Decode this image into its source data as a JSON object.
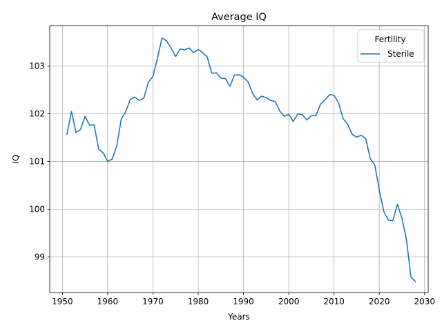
{
  "chart_data": {
    "type": "line",
    "title": "Average IQ",
    "xlabel": "Years",
    "ylabel": "IQ",
    "xlim": [
      1947.2,
      2030.8
    ],
    "ylim": [
      98.25,
      103.85
    ],
    "xticks": [
      1950,
      1960,
      1970,
      1980,
      1990,
      2000,
      2010,
      2020,
      2030
    ],
    "yticks": [
      99,
      100,
      101,
      102,
      103
    ],
    "xtick_labels": [
      "1950",
      "1960",
      "1970",
      "1980",
      "1990",
      "2000",
      "2010",
      "2020",
      "2030"
    ],
    "ytick_labels": [
      "99",
      "100",
      "101",
      "102",
      "103"
    ],
    "grid": true,
    "legend": {
      "title": "Fertility",
      "placement": "upper-right"
    },
    "series": [
      {
        "name": "Sterile",
        "color": "#1f77b4",
        "x": [
          1951,
          1952,
          1953,
          1954,
          1955,
          1956,
          1957,
          1958,
          1959,
          1960,
          1961,
          1962,
          1963,
          1964,
          1965,
          1966,
          1967,
          1968,
          1969,
          1970,
          1971,
          1972,
          1973,
          1974,
          1975,
          1976,
          1977,
          1978,
          1979,
          1980,
          1981,
          1982,
          1983,
          1984,
          1985,
          1986,
          1987,
          1988,
          1989,
          1990,
          1991,
          1992,
          1993,
          1994,
          1995,
          1996,
          1997,
          1998,
          1999,
          2000,
          2001,
          2002,
          2003,
          2004,
          2005,
          2006,
          2007,
          2008,
          2009,
          2010,
          2011,
          2012,
          2013,
          2014,
          2015,
          2016,
          2017,
          2018,
          2019,
          2020,
          2021,
          2022,
          2023,
          2024,
          2025,
          2026,
          2027,
          2028
        ],
        "values": [
          101.57,
          102.05,
          101.61,
          101.67,
          101.95,
          101.76,
          101.77,
          101.26,
          101.18,
          101.0,
          101.05,
          101.32,
          101.89,
          102.05,
          102.3,
          102.35,
          102.28,
          102.33,
          102.67,
          102.78,
          103.17,
          103.59,
          103.53,
          103.38,
          103.2,
          103.36,
          103.34,
          103.38,
          103.28,
          103.35,
          103.28,
          103.19,
          102.85,
          102.86,
          102.75,
          102.74,
          102.58,
          102.81,
          102.82,
          102.77,
          102.67,
          102.43,
          102.29,
          102.37,
          102.34,
          102.28,
          102.26,
          102.06,
          101.95,
          101.99,
          101.84,
          102.0,
          101.98,
          101.87,
          101.96,
          101.96,
          102.2,
          102.29,
          102.4,
          102.39,
          102.23,
          101.9,
          101.78,
          101.57,
          101.51,
          101.55,
          101.48,
          101.06,
          100.93,
          100.4,
          99.95,
          99.77,
          99.76,
          100.1,
          99.81,
          99.36,
          98.57,
          98.48
        ]
      }
    ]
  }
}
